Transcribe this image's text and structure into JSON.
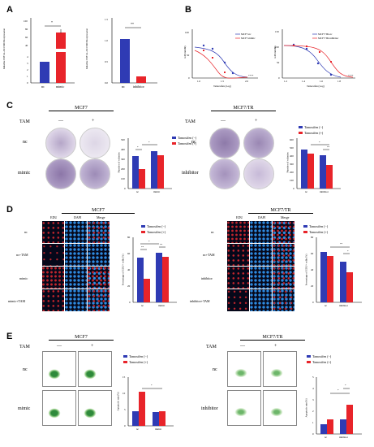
{
  "panels": {
    "a": "A",
    "b": "B",
    "c": "C",
    "d": "D",
    "e": "E"
  },
  "colors": {
    "blue": "#2f3bb4",
    "red": "#e8242a",
    "dish": "#6a4f8f",
    "dapi": "#1f7fd8",
    "edu": "#d3242b",
    "flow_cells": "#3a9a46"
  },
  "A": {
    "plot1": {
      "ylabel": "Relative HIF1A-AS1/MCM expression",
      "ticks": [
        "0",
        "1",
        "2",
        "3",
        "4",
        "40",
        "60",
        "80",
        "100"
      ],
      "xticks": [
        "nc",
        "mimic"
      ],
      "sig": "*",
      "values": [
        1.0,
        82
      ]
    },
    "plot2": {
      "ylabel": "Relative HIF1A-AS1/MCM expression",
      "ticks": [
        "0.0",
        "0.5",
        "1.0",
        "1.5"
      ],
      "xticks": [
        "nc",
        "inhibitor"
      ],
      "sig": "**",
      "values": [
        0.97,
        0.14
      ]
    }
  },
  "B": {
    "plot1": {
      "ylabel": "cell viability",
      "xlabel": "Tamoxifen (Log)",
      "xticks": [
        "1.0",
        "1.5",
        "2.0"
      ],
      "yticks": [
        "0",
        "50",
        "100"
      ],
      "legend": [
        "MCF7-nc",
        "MCF7-mimic"
      ],
      "sig": "****"
    },
    "plot2": {
      "ylabel": "cell viability",
      "xlabel": "Tamoxifen (Log)",
      "xticks": [
        "1.2",
        "1.4",
        "1.6",
        "1.8"
      ],
      "yticks": [
        "0",
        "50",
        "100",
        "150"
      ],
      "legend": [
        "MCF7/TR-nc",
        "MCF7/TR-inhibitor"
      ],
      "sig": "****"
    }
  },
  "C": {
    "left": {
      "title": "MCF7",
      "tam": "TAM",
      "minus": "—",
      "plus": "+",
      "rows": [
        "nc",
        "mimic"
      ],
      "chart": {
        "ylabel": "Number of colonies",
        "yticks": [
          "0",
          "100",
          "200",
          "300",
          "400",
          "500"
        ],
        "categories": [
          "nc",
          "mimic"
        ],
        "plus": [
          320,
          280
        ],
        "minus": [
          190,
          360
        ],
        "sigs": [
          "*",
          "*"
        ]
      }
    },
    "right": {
      "title": "MCF7/TR",
      "tam": "TAM",
      "minus": "—",
      "plus": "+",
      "rows": [
        "nc",
        "inhibitor"
      ],
      "chart": {
        "ylabel": "Number of colonies",
        "yticks": [
          "0",
          "100",
          "200",
          "300",
          "400",
          "500",
          "600"
        ],
        "categories": [
          "nc",
          "inhibitor"
        ],
        "minus": [
          470,
          400
        ],
        "plus": [
          430,
          290
        ],
        "sigs": [
          "**",
          "*"
        ]
      }
    },
    "legend": [
      "Tamoxifen (−)",
      "Tamoxifen (+)"
    ]
  },
  "D": {
    "left": {
      "title": "MCF7",
      "cols": [
        "EDU",
        "DAPI",
        "Merge"
      ],
      "rows": [
        "nc",
        "nc+TAM",
        "mimic",
        "mimic+TAM"
      ],
      "chart": {
        "ylabel": "Percentage of EDU+ cells (%)",
        "yticks": [
          "0",
          "20",
          "40",
          "60",
          "80"
        ],
        "categories": [
          "nc",
          "mimic"
        ],
        "minus": [
          55,
          62
        ],
        "plus": [
          30,
          56
        ],
        "sigs": [
          "**",
          "*",
          "**"
        ]
      }
    },
    "right": {
      "title": "MCF7/TR",
      "cols": [
        "EDU",
        "DAPI",
        "Merge"
      ],
      "rows": [
        "nc",
        "nc+TAM",
        "inhibitor",
        "inhibitor+TAM"
      ],
      "chart": {
        "ylabel": "Percentage of EDU+ cells (%)",
        "yticks": [
          "0",
          "20",
          "40",
          "60",
          "80"
        ],
        "categories": [
          "nc",
          "inhibitor"
        ],
        "minus": [
          62,
          50
        ],
        "plus": [
          57,
          37
        ],
        "sigs": [
          "**",
          "*"
        ]
      }
    },
    "legend": [
      "Tamoxifen (−)",
      "Tamoxifen (+)"
    ]
  },
  "E": {
    "left": {
      "title": "MCF7",
      "tam": "TAM",
      "minus": "—",
      "plus": "+",
      "rows": [
        "nc",
        "mimic"
      ],
      "chart": {
        "ylabel": "Apoptotic rate(%)",
        "yticks": [
          "0",
          "5",
          "10",
          "15"
        ],
        "categories": [
          "nc",
          "mimic"
        ],
        "minus": [
          4.5,
          4.2
        ],
        "plus": [
          10.5,
          4.5
        ],
        "sigs": [
          "*"
        ]
      }
    },
    "right": {
      "title": "MCF7/TR",
      "tam": "TAM",
      "minus": "—",
      "plus": "+",
      "rows": [
        "nc",
        "inhibitor"
      ],
      "chart": {
        "ylabel": "Apoptotic rate(%)",
        "yticks": [
          "0",
          "1",
          "2",
          "3",
          "4",
          "5"
        ],
        "categories": [
          "nc",
          "inhibitor"
        ],
        "minus": [
          1.3,
          2.0
        ],
        "plus": [
          2.0,
          4.1
        ],
        "sigs": [
          "*",
          "*"
        ]
      }
    },
    "legend": [
      "Tamoxifen (−)",
      "Tamoxifen (+)"
    ]
  }
}
